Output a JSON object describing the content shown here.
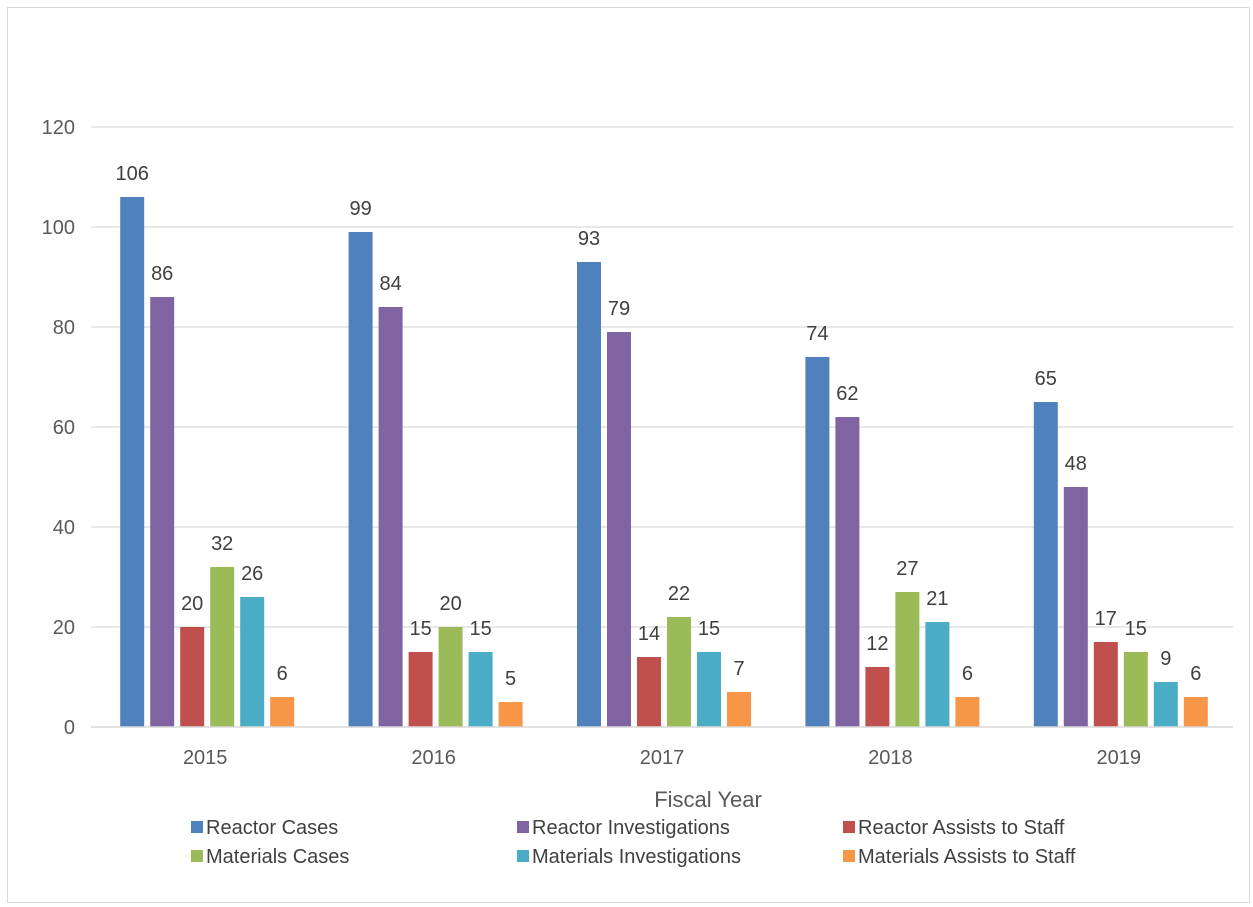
{
  "chart_data": {
    "type": "bar",
    "title": "",
    "xlabel": "Fiscal Year",
    "ylabel": "",
    "ylim": [
      0,
      120
    ],
    "yticks": [
      0,
      20,
      40,
      60,
      80,
      100,
      120
    ],
    "grid": true,
    "legend_position": "bottom",
    "categories": [
      "2015",
      "2016",
      "2017",
      "2018",
      "2019"
    ],
    "series": [
      {
        "name": "Reactor Cases",
        "color": "#4f81bd",
        "values": [
          106,
          99,
          93,
          74,
          65
        ]
      },
      {
        "name": "Reactor Investigations",
        "color": "#8064a2",
        "values": [
          86,
          84,
          79,
          62,
          48
        ]
      },
      {
        "name": "Reactor Assists to Staff",
        "color": "#c0504d",
        "values": [
          20,
          15,
          14,
          12,
          17
        ]
      },
      {
        "name": "Materials Cases",
        "color": "#9bbb59",
        "values": [
          32,
          20,
          22,
          27,
          15
        ]
      },
      {
        "name": "Materials Investigations",
        "color": "#4bacc6",
        "values": [
          26,
          15,
          15,
          21,
          9
        ]
      },
      {
        "name": "Materials Assists to Staff",
        "color": "#f79646",
        "values": [
          6,
          5,
          7,
          6,
          6
        ]
      }
    ]
  }
}
